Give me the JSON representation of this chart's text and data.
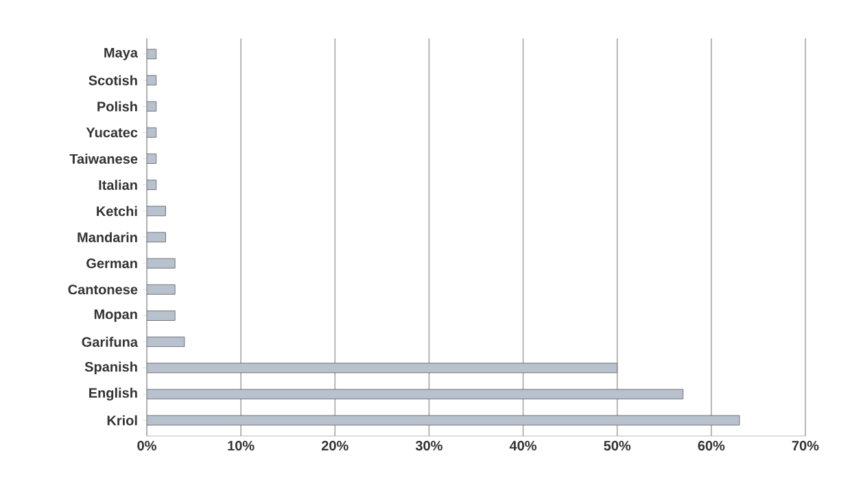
{
  "chart_data": {
    "type": "bar",
    "orientation": "horizontal",
    "categories": [
      "Maya",
      "Scotish",
      "Polish",
      "Yucatec",
      "Taiwanese",
      "Italian",
      "Ketchi",
      "Mandarin",
      "German",
      "Cantonese",
      "Mopan",
      "Garifuna",
      "Spanish",
      "English",
      "Kriol"
    ],
    "values": [
      1,
      1,
      1,
      1,
      1,
      1,
      2,
      2,
      3,
      3,
      3,
      4,
      50,
      57,
      63
    ],
    "color": "#b8c2cf",
    "xlim": [
      0,
      70
    ],
    "xticks": [
      {
        "value": 0,
        "label": "0%"
      },
      {
        "value": 10,
        "label": "10%"
      },
      {
        "value": 20,
        "label": "20%"
      },
      {
        "value": 30,
        "label": "30%"
      },
      {
        "value": 40,
        "label": "40%"
      },
      {
        "value": 50,
        "label": "50%"
      },
      {
        "value": 60,
        "label": "60%"
      },
      {
        "value": 70,
        "label": "70%"
      }
    ],
    "grid": "x"
  }
}
